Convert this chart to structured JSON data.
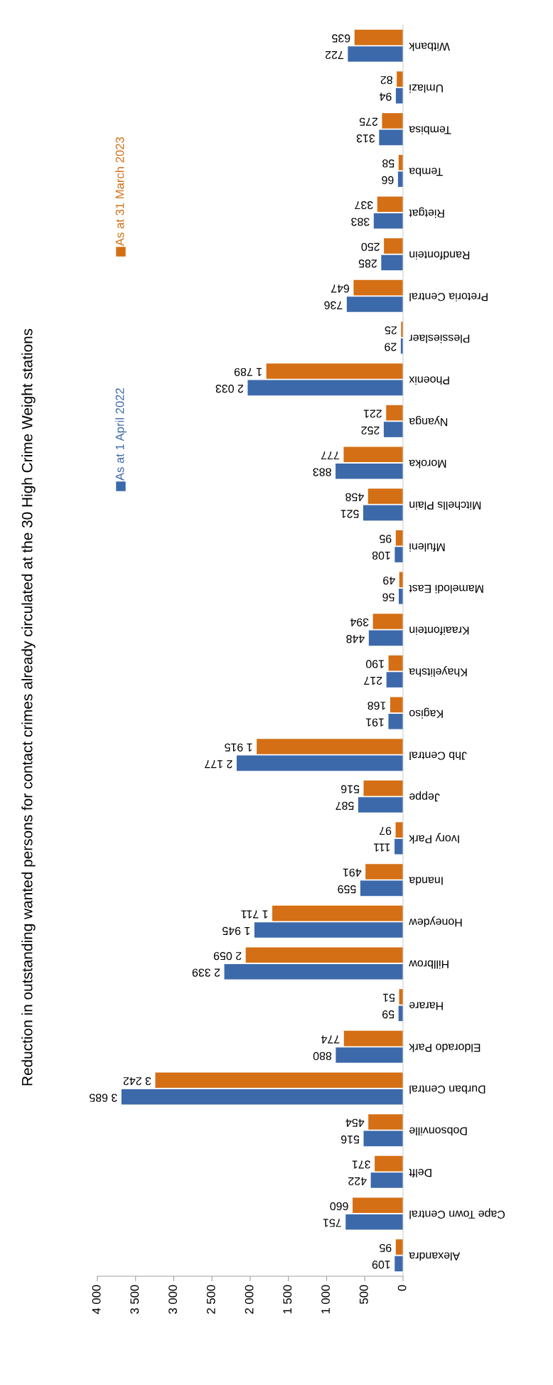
{
  "chart_data": {
    "type": "bar",
    "orientation": "horizontal",
    "title": "Reduction in outstanding wanted persons for contact crimes already circulated at the 30 High Crime Weight stations",
    "categories": [
      "Witbank",
      "Umlazi",
      "Tembisa",
      "Temba",
      "Rietgat",
      "Randfontein",
      "Pretoria Central",
      "Plessieslaer",
      "Phoenix",
      "Nyanga",
      "Moroka",
      "Mitchells Plain",
      "Mfuleni",
      "Mamelodi East",
      "Kraaifontein",
      "Khayelitsha",
      "Kagiso",
      "Jhb Central",
      "Jeppe",
      "Ivory Park",
      "Inanda",
      "Honeydew",
      "Hillbrow",
      "Harare",
      "Eldorado Park",
      "Durban Central",
      "Dobsonville",
      "Delft",
      "Cape Town Central",
      "Alexandra"
    ],
    "series": [
      {
        "name": "As at 1 April 2022",
        "color": "#3c69aa",
        "values": [
          722,
          94,
          313,
          66,
          383,
          285,
          736,
          29,
          2033,
          252,
          883,
          521,
          108,
          56,
          448,
          217,
          191,
          2177,
          587,
          111,
          559,
          1945,
          2339,
          59,
          880,
          3685,
          516,
          422,
          751,
          109
        ],
        "value_labels": [
          "722",
          "94",
          "313",
          "66",
          "383",
          "285",
          "736",
          "29",
          "2 033",
          "252",
          "883",
          "521",
          "108",
          "56",
          "448",
          "217",
          "191",
          "2 177",
          "587",
          "111",
          "559",
          "1 945",
          "2 339",
          "59",
          "880",
          "3 685",
          "516",
          "422",
          "751",
          "109"
        ]
      },
      {
        "name": "As at 31 March 2023",
        "color": "#d46f15",
        "values": [
          635,
          82,
          275,
          58,
          337,
          250,
          647,
          25,
          1789,
          221,
          777,
          458,
          95,
          49,
          394,
          190,
          168,
          1915,
          516,
          97,
          491,
          1711,
          2059,
          51,
          774,
          3242,
          454,
          371,
          660,
          95
        ],
        "value_labels": [
          "635",
          "82",
          "275",
          "58",
          "337",
          "250",
          "647",
          "25",
          "1 789",
          "221",
          "777",
          "458",
          "95",
          "49",
          "394",
          "190",
          "168",
          "1 915",
          "516",
          "97",
          "491",
          "1 711",
          "2 059",
          "51",
          "774",
          "3 242",
          "454",
          "371",
          "660",
          "95"
        ]
      }
    ],
    "xlim": [
      4000,
      0
    ],
    "xticks": [
      {
        "value": 4000,
        "label": "4 000"
      },
      {
        "value": 3500,
        "label": "3 500"
      },
      {
        "value": 3000,
        "label": "3 000"
      },
      {
        "value": 2500,
        "label": "2 500"
      },
      {
        "value": 2000,
        "label": "2 000"
      },
      {
        "value": 1500,
        "label": "1 500"
      },
      {
        "value": 1000,
        "label": "1 000"
      },
      {
        "value": 500,
        "label": "500"
      },
      {
        "value": 0,
        "label": "0"
      }
    ],
    "grid": false,
    "legend": "left"
  }
}
